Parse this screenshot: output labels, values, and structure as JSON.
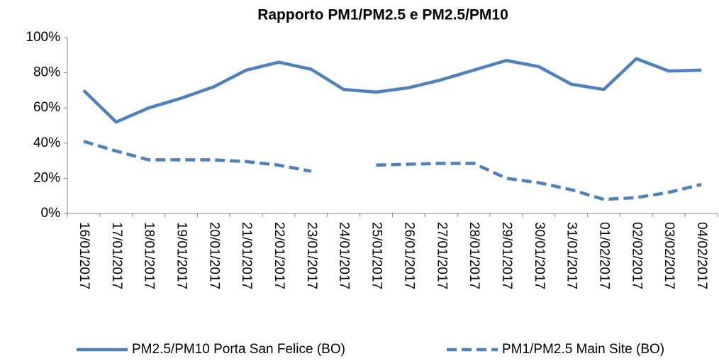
{
  "chart_data": {
    "type": "line",
    "title": "Rapporto PM1/PM2.5 e PM2.5/PM10",
    "categories": [
      "16/01/2017",
      "17/01/2017",
      "18/01/2017",
      "19/01/2017",
      "20/01/2017",
      "21/01/2017",
      "22/01/2017",
      "23/01/2017",
      "24/01/2017",
      "25/01/2017",
      "26/01/2017",
      "27/01/2017",
      "28/01/2017",
      "29/01/2017",
      "30/01/2017",
      "31/01/2017",
      "01/02/2017",
      "02/02/2017",
      "03/02/2017",
      "04/02/2017"
    ],
    "series": [
      {
        "name": "PM2.5/PM10 Porta San Felice (BO)",
        "color": "#4f81bd",
        "dash": false,
        "values": [
          70,
          52,
          60,
          65.5,
          72,
          81.5,
          86,
          82,
          70.5,
          69,
          71.5,
          76,
          81.5,
          87,
          83.5,
          73.5,
          70.5,
          88,
          81,
          81.5
        ]
      },
      {
        "name": "PM1/PM2.5 Main Site (BO)",
        "color": "#4f81bd",
        "dash": true,
        "values": [
          41,
          35.5,
          30.5,
          30.5,
          30.5,
          29.5,
          27.5,
          24,
          null,
          27.5,
          28,
          28.5,
          28.5,
          20,
          17.5,
          13.5,
          8,
          9,
          12,
          16.5
        ]
      }
    ],
    "ylim": [
      0,
      100
    ],
    "yticks": [
      {
        "value": 0,
        "label": "0%"
      },
      {
        "value": 20,
        "label": "20%"
      },
      {
        "value": 40,
        "label": "40%"
      },
      {
        "value": 60,
        "label": "60%"
      },
      {
        "value": 80,
        "label": "80%"
      },
      {
        "value": 100,
        "label": "100%"
      }
    ],
    "grid": false,
    "legend": "bottom"
  }
}
